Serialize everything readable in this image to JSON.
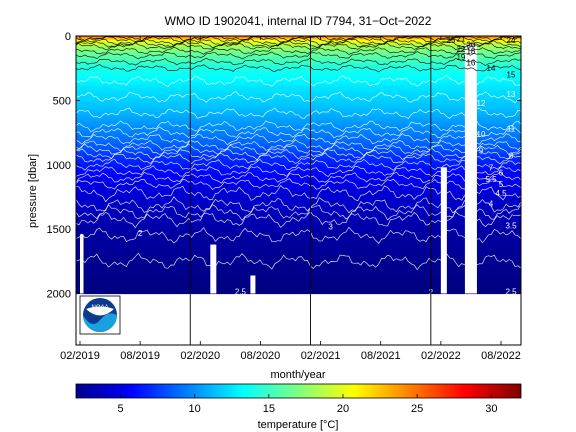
{
  "chart_data": {
    "type": "heatmap",
    "title": "WMO ID 1902041, internal ID 7794, 31−Oct−2022",
    "xlabel": "month/year",
    "ylabel": "pressure [dbar]",
    "colorbar_label": "temperature",
    "colorbar_unit": "[°C]",
    "x_ticks": [
      "02/2019",
      "08/2019",
      "02/2020",
      "08/2020",
      "02/2021",
      "08/2021",
      "02/2022",
      "08/2022"
    ],
    "y_ticks": [
      "0",
      "500",
      "1000",
      "1500",
      "2000"
    ],
    "ylim": [
      0,
      2400
    ],
    "y_reversed": true,
    "colorbar_ticks": [
      "5",
      "10",
      "15",
      "20",
      "25",
      "30"
    ],
    "colorbar_range": [
      2,
      32
    ],
    "colormap": "jet",
    "profile_max_pressure": 2000,
    "year_boundaries": [
      "01/2020",
      "01/2021",
      "01/2022"
    ],
    "isotherm_labels": [
      {
        "text": "2",
        "date": "2019-08",
        "pressure": 1530
      },
      {
        "text": "3",
        "date": "2021-03",
        "pressure": 1480
      },
      {
        "text": "2",
        "date": "2022-01",
        "pressure": 1990
      },
      {
        "text": "2.5",
        "date": "2022-09",
        "pressure": 1985
      },
      {
        "text": "2.5",
        "date": "2020-06",
        "pressure": 1985
      },
      {
        "text": "3.5",
        "date": "2022-09",
        "pressure": 1470
      },
      {
        "text": "4",
        "date": "2022-07",
        "pressure": 1300
      },
      {
        "text": "4.5",
        "date": "2022-08",
        "pressure": 1220
      },
      {
        "text": "5",
        "date": "2022-08",
        "pressure": 1150
      },
      {
        "text": "5.5",
        "date": "2022-07",
        "pressure": 1110
      },
      {
        "text": "6",
        "date": "2022-08",
        "pressure": 1060
      },
      {
        "text": "7",
        "date": "2022-07",
        "pressure": 1020
      },
      {
        "text": "8",
        "date": "2022-09",
        "pressure": 930
      },
      {
        "text": "9",
        "date": "2022-06",
        "pressure": 890
      },
      {
        "text": "10",
        "date": "2022-06",
        "pressure": 760
      },
      {
        "text": "11",
        "date": "2022-09",
        "pressure": 720
      },
      {
        "text": "12",
        "date": "2022-06",
        "pressure": 520
      },
      {
        "text": "13",
        "date": "2022-09",
        "pressure": 450
      },
      {
        "text": "14",
        "date": "2022-07",
        "pressure": 250
      },
      {
        "text": "15",
        "date": "2022-09",
        "pressure": 300
      },
      {
        "text": "16",
        "date": "2022-05",
        "pressure": 205
      },
      {
        "text": "18",
        "date": "2022-05",
        "pressure": 115
      },
      {
        "text": "19",
        "date": "2022-04",
        "pressure": 165
      },
      {
        "text": "20",
        "date": "2022-05",
        "pressure": 65
      },
      {
        "text": "22",
        "date": "2022-04",
        "pressure": 100
      },
      {
        "text": "24",
        "date": "2022-09",
        "pressure": 30
      },
      {
        "text": "25",
        "date": "2022-03",
        "pressure": 30
      },
      {
        "text": "21",
        "date": "2022-04",
        "pressure": 20
      }
    ]
  },
  "logo": {
    "text": "NOAA",
    "colors": [
      "#0a3b8c",
      "#1aa0e0",
      "#ffffff"
    ]
  }
}
